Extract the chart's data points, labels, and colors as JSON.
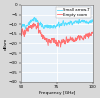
{
  "title": "",
  "xlabel": "Frequency [GHz]",
  "ylabel": "dBsm",
  "xlim": [
    50,
    100
  ],
  "ylim": [
    -40,
    0
  ],
  "yticks": [
    -40,
    -35,
    -30,
    -25,
    -20,
    -15,
    -10,
    -5,
    0
  ],
  "xticks": [
    50,
    75,
    100
  ],
  "legend_entries": [
    "Small arrow-T",
    "Empty room"
  ],
  "line_color_1": "#55ddff",
  "line_color_2": "#ff7070",
  "background_color": "#d8d8d8",
  "plot_bg_color": "#e8f0f8",
  "grid_color": "#ffffff",
  "figsize": [
    1.0,
    0.98
  ],
  "dpi": 100,
  "seed": 12
}
